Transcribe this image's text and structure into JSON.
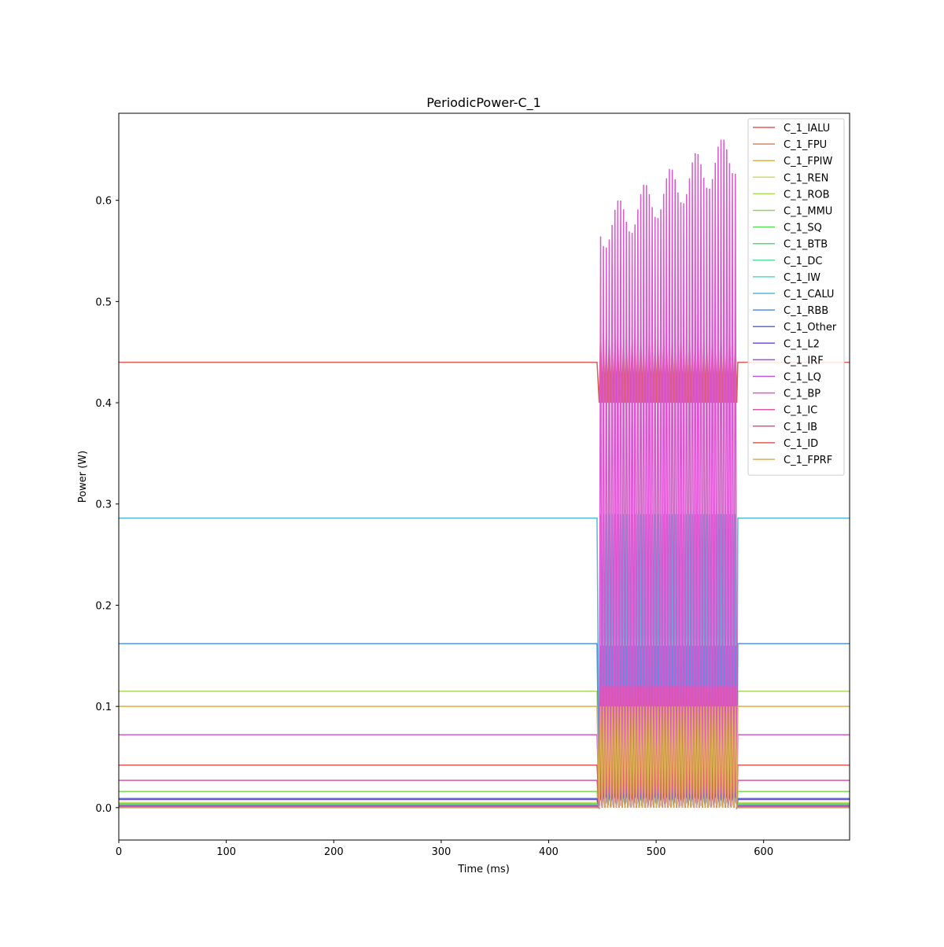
{
  "chart_data": {
    "type": "line",
    "title": "PeriodicPower-C_1",
    "xlabel": "Time (ms)",
    "ylabel": "Power (W)",
    "xlim": [
      0,
      680
    ],
    "ylim": [
      -0.032,
      0.686
    ],
    "xticks": [
      0,
      100,
      200,
      300,
      400,
      500,
      600
    ],
    "yticks": [
      0.0,
      0.1,
      0.2,
      0.3,
      0.4,
      0.5,
      0.6
    ],
    "xtick_labels": [
      "0",
      "100",
      "200",
      "300",
      "400",
      "500",
      "600"
    ],
    "ytick_labels": [
      "0.0",
      "0.1",
      "0.2",
      "0.3",
      "0.4",
      "0.5",
      "0.6"
    ],
    "legend_position": "top-right",
    "grid": false,
    "burst": {
      "x_start": 447,
      "x_end": 575,
      "cycles": 48
    },
    "series": [
      {
        "name": "C_1_IALU",
        "color": "#db5f57",
        "baseline": 0.44,
        "burst_low": 0.4,
        "burst_high": 0.47
      },
      {
        "name": "C_1_FPU",
        "color": "#db8657",
        "baseline": 0.0,
        "burst_low": 0.0,
        "burst_high": 0.07
      },
      {
        "name": "C_1_FPIW",
        "color": "#dbae57",
        "baseline": 0.0,
        "burst_low": 0.0,
        "burst_high": 0.02
      },
      {
        "name": "C_1_REN",
        "color": "#d3db57",
        "baseline": 0.005,
        "burst_low": 0.09,
        "burst_high": 0.1
      },
      {
        "name": "C_1_ROB",
        "color": "#acdb57",
        "baseline": 0.115,
        "burst_low": 0.0,
        "burst_high": 0.12
      },
      {
        "name": "C_1_MMU",
        "color": "#84db57",
        "baseline": 0.016,
        "burst_low": 0.0,
        "burst_high": 0.03
      },
      {
        "name": "C_1_SQ",
        "color": "#5ddb57",
        "baseline": 0.003,
        "burst_low": 0.0,
        "burst_high": 0.02
      },
      {
        "name": "C_1_BTB",
        "color": "#57db79",
        "baseline": 0.002,
        "burst_low": 0.0,
        "burst_high": 0.02
      },
      {
        "name": "C_1_DC",
        "color": "#57dba0",
        "baseline": 0.004,
        "burst_low": 0.0,
        "burst_high": 0.04
      },
      {
        "name": "C_1_IW",
        "color": "#57dbc8",
        "baseline": 0.001,
        "burst_low": 0.0,
        "burst_high": 0.02
      },
      {
        "name": "C_1_CALU",
        "color": "#57b9db",
        "baseline": 0.286,
        "burst_low": 0.0,
        "burst_high": 0.29
      },
      {
        "name": "C_1_RBB",
        "color": "#5791db",
        "baseline": 0.162,
        "burst_low": 0.0,
        "burst_high": 0.16
      },
      {
        "name": "C_1_Other",
        "color": "#5769db",
        "baseline": 0.009,
        "burst_low": 0.0,
        "burst_high": 0.02
      },
      {
        "name": "C_1_L2",
        "color": "#6e57db",
        "baseline": 0.008,
        "burst_low": 0.0,
        "burst_high": 0.02
      },
      {
        "name": "C_1_IRF",
        "color": "#9657db",
        "baseline": 0.002,
        "burst_low": 0.0,
        "burst_high": 0.03
      },
      {
        "name": "C_1_LQ",
        "color": "#bd57db",
        "baseline": 0.001,
        "burst_low": 0.0,
        "burst_high": 0.03
      },
      {
        "name": "C_1_BP",
        "color": "#db57cf",
        "baseline": 0.072,
        "burst_low": 0.0,
        "burst_high": 0.64
      },
      {
        "name": "C_1_IC",
        "color": "#db57a7",
        "baseline": 0.027,
        "burst_low": 0.0,
        "burst_high": 0.12
      },
      {
        "name": "C_1_IB",
        "color": "#db5780",
        "baseline": 0.001,
        "burst_low": 0.0,
        "burst_high": 0.04
      },
      {
        "name": "C_1_ID",
        "color": "#db5f57",
        "baseline": 0.042,
        "burst_low": 0.0,
        "burst_high": 0.07
      },
      {
        "name": "C_1_FPRF",
        "color": "#dbae57",
        "baseline": 0.1,
        "burst_low": 0.0,
        "burst_high": 0.1
      }
    ]
  }
}
